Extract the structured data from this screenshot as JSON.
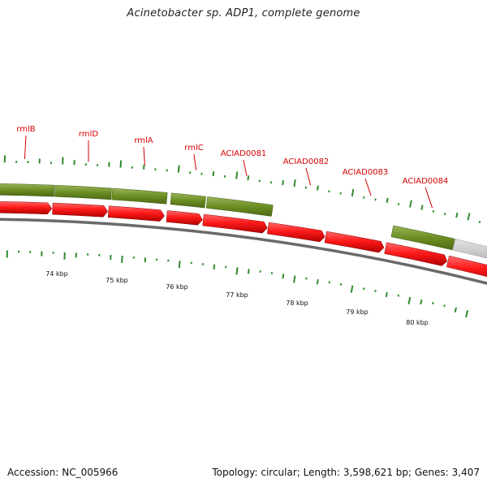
{
  "title": "Acinetobacter sp. ADP1, complete genome",
  "footer": {
    "accession": "Accession: NC_005966",
    "summary": "Topology: circular; Length: 3,598,621 bp; Genes: 3,407"
  },
  "colors": {
    "cds_forward": "#ff1a1a",
    "gene_track": "#6b8e23",
    "gene_track_other": "#c8c8c8",
    "backbone": "#6a6a6a",
    "gc_ticks": "#2e8b2e",
    "label": "#d40000"
  },
  "gene_labels": [
    "rmlB",
    "rmlD",
    "rmlA",
    "rmlC",
    "ACIAD0081",
    "ACIAD0082",
    "ACIAD0083",
    "ACIAD0084"
  ],
  "scale_labels": [
    "74 kbp",
    "75 kbp",
    "76 kbp",
    "77 kbp",
    "78 kbp",
    "79 kbp",
    "80 kbp"
  ]
}
